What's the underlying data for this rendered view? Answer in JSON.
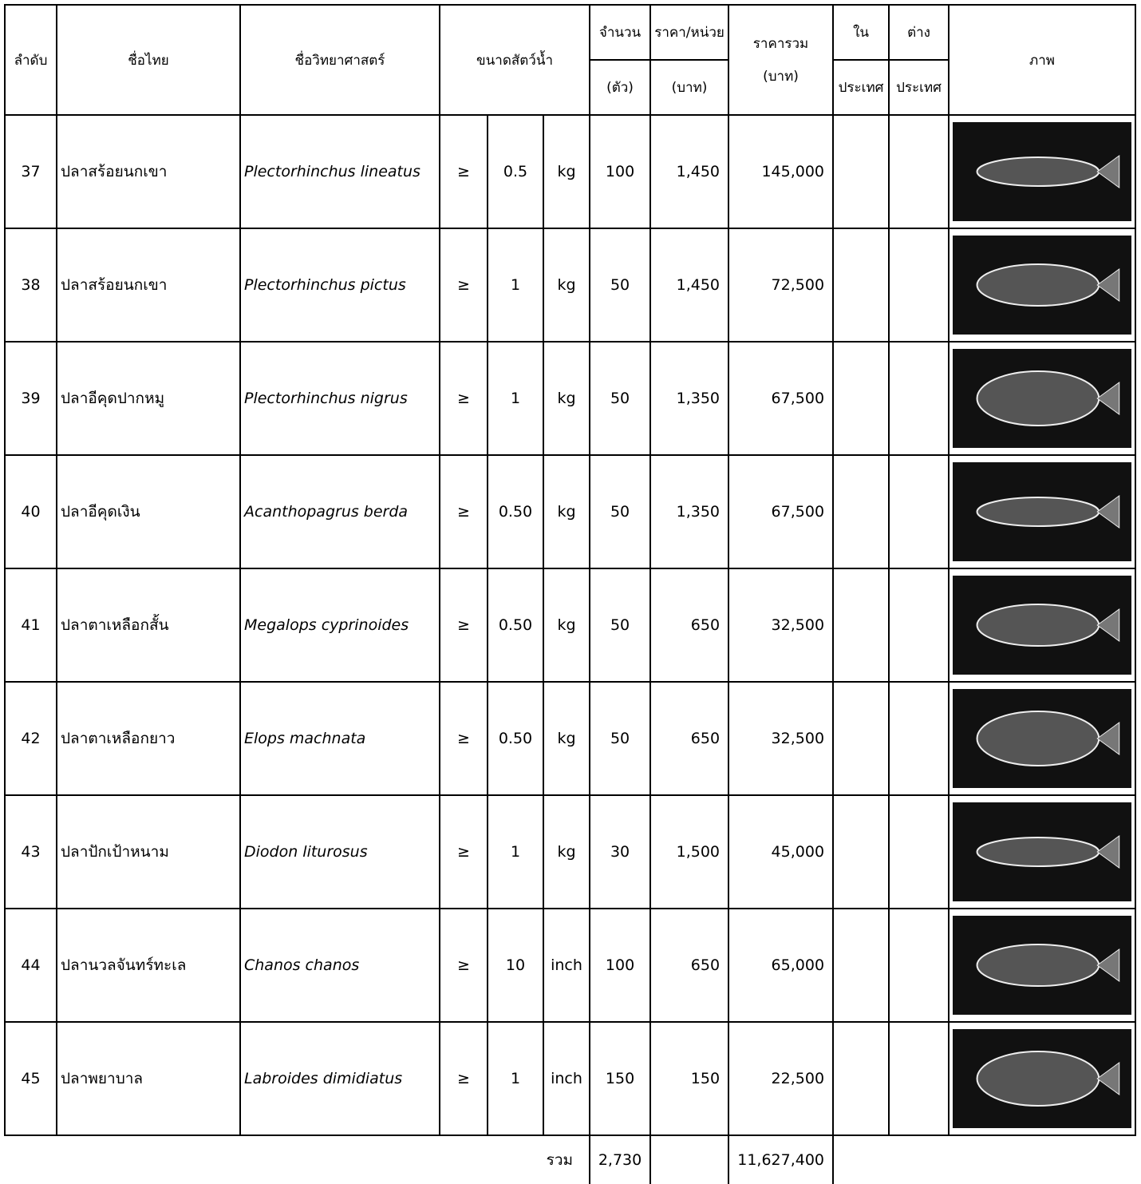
{
  "table": {
    "header": {
      "no": "ลำดับ",
      "thai": "ชื่อไทย",
      "sci": "ชื่อวิทยาศาสตร์",
      "size": "ขนาดสัตว์น้ำ",
      "qty": "จำนวน",
      "qty_unit": "(ตัว)",
      "price": "ราคา/หน่วย",
      "price_unit": "(บาท)",
      "total": "ราคารวม",
      "total_unit": "(บาท)",
      "in": "ใน",
      "in_2": "ประเทศ",
      "out": "ต่าง",
      "out_2": "ประเทศ",
      "image": "ภาพ"
    },
    "rows": [
      [
        "37",
        "ปลาสร้อยนกเขา",
        "Plectorhinchus lineatus",
        "≥",
        "0.5",
        "kg",
        "100",
        "1,450",
        "145,000"
      ],
      [
        "38",
        "ปลาสร้อยนกเขา",
        "Plectorhinchus pictus",
        "≥",
        "1",
        "kg",
        "50",
        "1,450",
        "72,500"
      ],
      [
        "39",
        "ปลาอีคุดปากหมู",
        "Plectorhinchus nigrus",
        "≥",
        "1",
        "kg",
        "50",
        "1,350",
        "67,500"
      ],
      [
        "40",
        "ปลาอีคุดเงิน",
        "Acanthopagrus berda",
        "≥",
        "0.50",
        "kg",
        "50",
        "1,350",
        "67,500"
      ],
      [
        "41",
        "ปลาตาเหลือกสั้น",
        "Megalops cyprinoides",
        "≥",
        "0.50",
        "kg",
        "50",
        "650",
        "32,500"
      ],
      [
        "42",
        "ปลาตาเหลือกยาว",
        "Elops machnata",
        "≥",
        "0.50",
        "kg",
        "50",
        "650",
        "32,500"
      ],
      [
        "43",
        "ปลาปักเป้าหนาม",
        "Diodon liturosus",
        "≥",
        "1",
        "kg",
        "30",
        "1,500",
        "45,000"
      ],
      [
        "44",
        "ปลานวลจันทร์ทะเล",
        "Chanos chanos",
        "≥",
        "10",
        "inch",
        "100",
        "650",
        "65,000"
      ],
      [
        "45",
        "ปลาพยาบาล",
        "Labroides dimidiatus",
        "≥",
        "1",
        "inch",
        "150",
        "150",
        "22,500"
      ]
    ],
    "footer": {
      "label": "รวม",
      "qty": "2,730",
      "total": "11,627,400"
    }
  }
}
